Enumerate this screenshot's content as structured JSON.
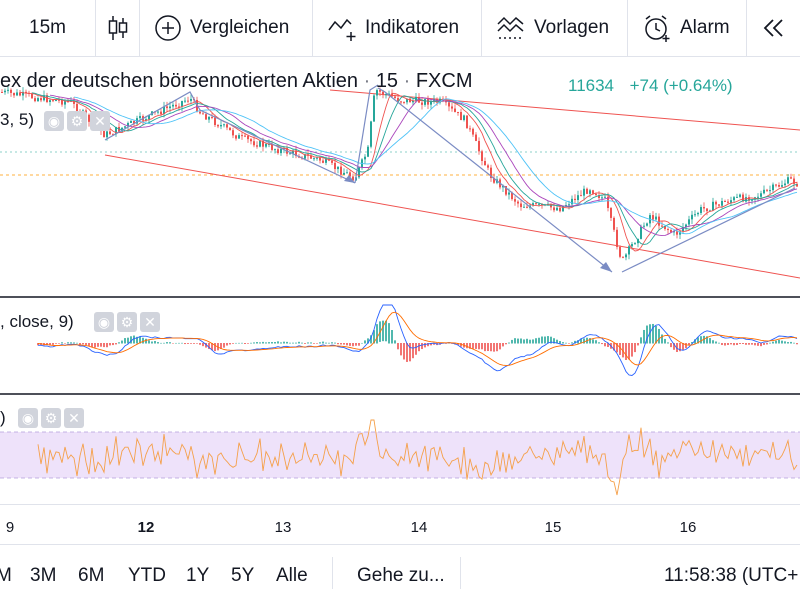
{
  "toolbar": {
    "interval": "15m",
    "compare_label": "Vergleichen",
    "indicators_label": "Indikatoren",
    "templates_label": "Vorlagen",
    "alert_label": "Alarm"
  },
  "legend": {
    "symbol_name": "ex der deutschen börsennotierten Aktien",
    "interval": "15",
    "source": "FXCM",
    "price": "11634",
    "change": "+74 (+0.64%)",
    "ma_fragment": "3, 5)"
  },
  "studies": {
    "macd_label": ", close, 9)",
    "rsi_label": ")"
  },
  "time_axis": {
    "labels": [
      "9",
      "12",
      "13",
      "14",
      "15",
      "16"
    ]
  },
  "bottom_bar": {
    "ranges": [
      "M",
      "3M",
      "6M",
      "YTD",
      "1Y",
      "5Y",
      "Alle"
    ],
    "goto_label": "Gehe zu...",
    "clock": "11:58:38 (UTC+"
  },
  "colors": {
    "up": "#26a69a",
    "down": "#ef5350",
    "trend_line": "#ef5350",
    "arrow": "#7b8cc4",
    "rsi_band": "#e8d8f8",
    "rsi_line": "#f5a04a",
    "macd_line": "#2962ff",
    "signal_line": "#ff6d00"
  }
}
